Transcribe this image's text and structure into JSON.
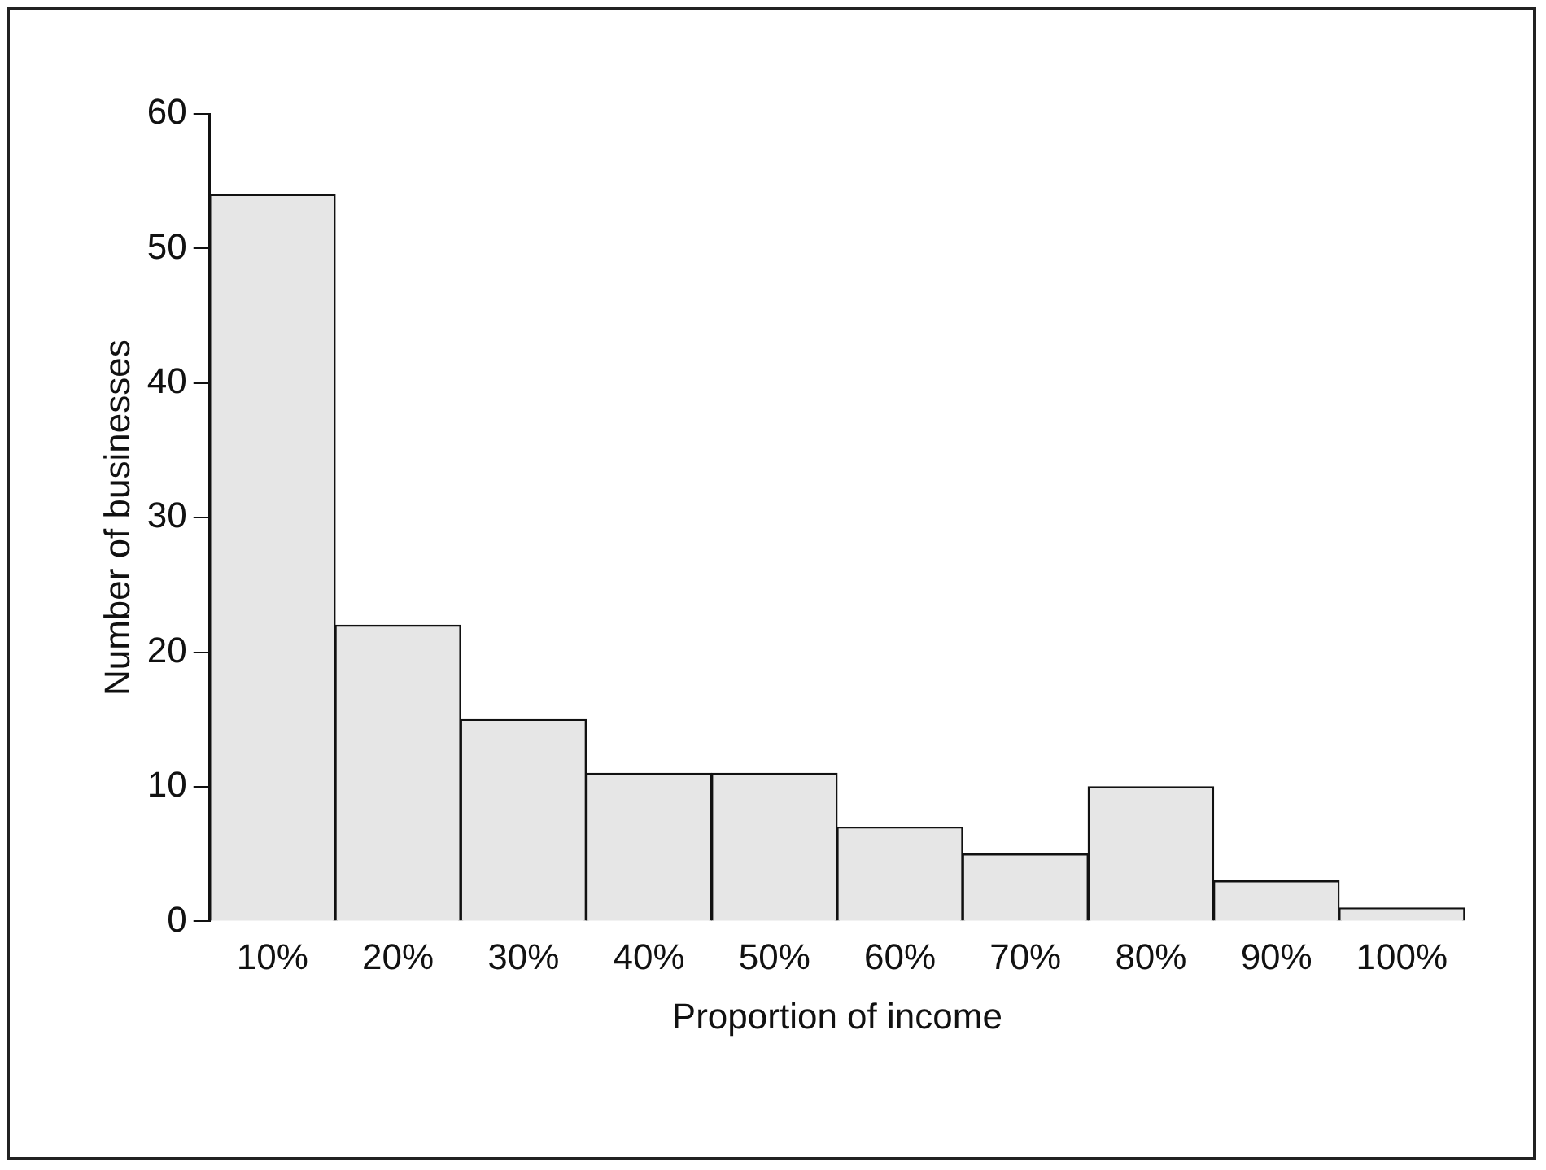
{
  "chart_data": {
    "type": "bar",
    "xlabel": "Proportion of income",
    "ylabel": "Number of businesses",
    "categories": [
      "10%",
      "20%",
      "30%",
      "40%",
      "50%",
      "60%",
      "70%",
      "80%",
      "90%",
      "100%"
    ],
    "values": [
      54,
      22,
      15,
      11,
      11,
      7,
      5,
      10,
      3,
      1
    ],
    "color": "#e6e6e6",
    "ylim": [
      0,
      60
    ],
    "yticks": [
      0,
      10,
      20,
      30,
      40,
      50,
      60
    ],
    "grid": false,
    "legend": false
  }
}
